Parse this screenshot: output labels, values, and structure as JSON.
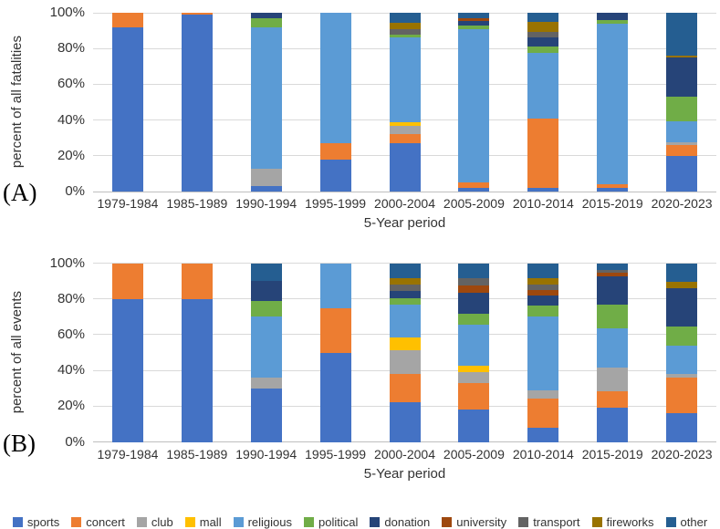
{
  "series_colors": {
    "sports": "#4472C4",
    "concert": "#ED7D31",
    "club": "#A5A5A5",
    "mall": "#FFC000",
    "religious": "#5B9BD5",
    "political": "#70AD47",
    "donation": "#264478",
    "university": "#9E480E",
    "transport": "#636363",
    "fireworks": "#997300",
    "other": "#255E91"
  },
  "legend": {
    "items": [
      "sports",
      "concert",
      "club",
      "mall",
      "religious",
      "political",
      "donation",
      "university",
      "transport",
      "fireworks",
      "other"
    ]
  },
  "chart_data": [
    {
      "type": "bar",
      "subtype": "stacked-100",
      "panel_label": "(A)",
      "ylabel": "percent of all fatalities",
      "xlabel": "5-Year period",
      "ylim": [
        0,
        100
      ],
      "yticks": [
        {
          "label": "0%",
          "value": 0
        },
        {
          "label": "20%",
          "value": 20
        },
        {
          "label": "40%",
          "value": 40
        },
        {
          "label": "60%",
          "value": 60
        },
        {
          "label": "80%",
          "value": 80
        },
        {
          "label": "100%",
          "value": 100
        }
      ],
      "grid": true,
      "legend_position": "bottom",
      "categories": [
        "1979-1984",
        "1985-1989",
        "1990-1994",
        "1995-1999",
        "2000-2004",
        "2005-2009",
        "2010-2014",
        "2015-2019",
        "2020-2023"
      ],
      "series": [
        {
          "name": "sports",
          "values": [
            92,
            99,
            3,
            18,
            27,
            2,
            2,
            2,
            20
          ]
        },
        {
          "name": "concert",
          "values": [
            8,
            1,
            0,
            9,
            5,
            3,
            39,
            2,
            6
          ]
        },
        {
          "name": "club",
          "values": [
            0,
            0,
            10,
            0,
            5,
            0,
            0,
            0,
            1.5
          ]
        },
        {
          "name": "mall",
          "values": [
            0,
            0,
            0,
            0,
            2,
            0,
            0,
            0,
            0
          ]
        },
        {
          "name": "religious",
          "values": [
            0,
            0,
            79,
            73,
            47,
            86,
            36.5,
            90,
            12
          ]
        },
        {
          "name": "political",
          "values": [
            0,
            0,
            5,
            0,
            2,
            2,
            3.5,
            2,
            13.5
          ]
        },
        {
          "name": "donation",
          "values": [
            0,
            0,
            3,
            0,
            0,
            2.5,
            5,
            4,
            22
          ]
        },
        {
          "name": "university",
          "values": [
            0,
            0,
            0,
            0,
            0,
            1.5,
            0,
            0,
            0
          ]
        },
        {
          "name": "transport",
          "values": [
            0,
            0,
            0,
            0,
            3,
            0,
            3.5,
            0,
            0
          ]
        },
        {
          "name": "fireworks",
          "values": [
            0,
            0,
            0,
            0,
            3.5,
            0,
            5.5,
            0,
            1
          ]
        },
        {
          "name": "other",
          "values": [
            0,
            0,
            0,
            0,
            5.5,
            3,
            5,
            0,
            24
          ]
        }
      ]
    },
    {
      "type": "bar",
      "subtype": "stacked-100",
      "panel_label": "(B)",
      "ylabel": "percent of all events",
      "xlabel": "5-Year period",
      "ylim": [
        0,
        100
      ],
      "yticks": [
        {
          "label": "0%",
          "value": 0
        },
        {
          "label": "20%",
          "value": 20
        },
        {
          "label": "40%",
          "value": 40
        },
        {
          "label": "60%",
          "value": 60
        },
        {
          "label": "80%",
          "value": 80
        },
        {
          "label": "100%",
          "value": 100
        }
      ],
      "grid": true,
      "legend_position": "bottom",
      "categories": [
        "1979-1984",
        "1985-1989",
        "1990-1994",
        "1995-1999",
        "2000-2004",
        "2005-2009",
        "2010-2014",
        "2015-2019",
        "2020-2023"
      ],
      "series": [
        {
          "name": "sports",
          "values": [
            80,
            80,
            30,
            50,
            22,
            18,
            8,
            19,
            16
          ]
        },
        {
          "name": "concert",
          "values": [
            20,
            20,
            0,
            25,
            16,
            15,
            16,
            9.5,
            20
          ]
        },
        {
          "name": "club",
          "values": [
            0,
            0,
            6,
            0,
            13.5,
            6,
            5,
            13,
            2
          ]
        },
        {
          "name": "mall",
          "values": [
            0,
            0,
            0,
            0,
            7,
            3.5,
            0,
            0,
            0
          ]
        },
        {
          "name": "religious",
          "values": [
            0,
            0,
            34,
            25,
            18.5,
            23,
            41,
            22,
            16
          ]
        },
        {
          "name": "political",
          "values": [
            0,
            0,
            9,
            0,
            3.5,
            6,
            6.5,
            13.5,
            10.5
          ]
        },
        {
          "name": "donation",
          "values": [
            0,
            0,
            11,
            0,
            4,
            12,
            5.5,
            15.5,
            21.5
          ]
        },
        {
          "name": "university",
          "values": [
            0,
            0,
            0,
            0,
            0,
            4,
            3,
            2,
            0
          ]
        },
        {
          "name": "transport",
          "values": [
            0,
            0,
            0,
            0,
            3.5,
            4,
            3,
            1.5,
            0
          ]
        },
        {
          "name": "fireworks",
          "values": [
            0,
            0,
            0,
            0,
            3.5,
            0,
            3.5,
            0,
            3.5
          ]
        },
        {
          "name": "other",
          "values": [
            0,
            0,
            10,
            0,
            8.5,
            8.5,
            8.5,
            4,
            10.5
          ]
        }
      ]
    }
  ]
}
